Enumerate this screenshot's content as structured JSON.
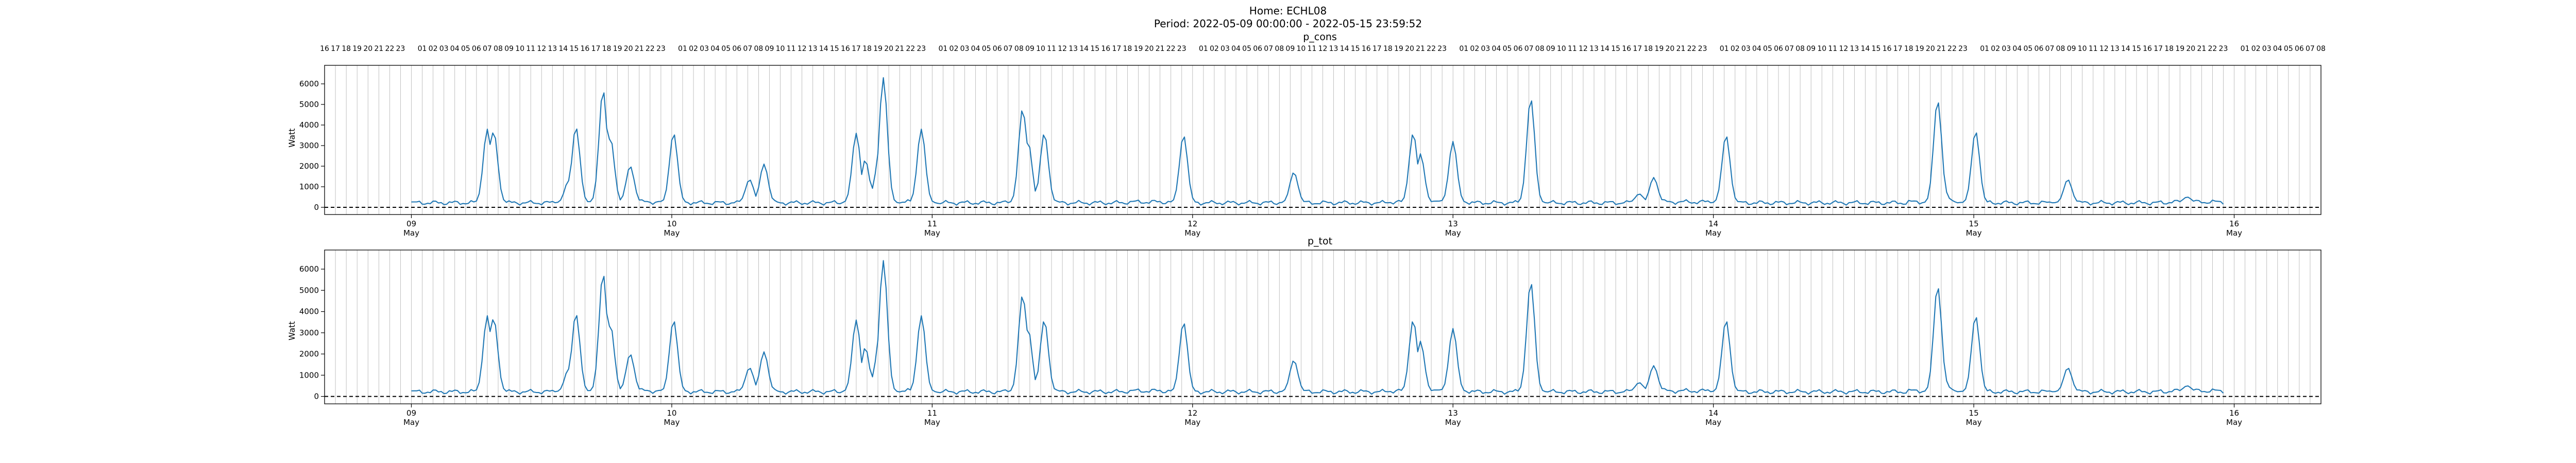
{
  "figure": {
    "title_line1": "Home: ECHL08",
    "title_line2": "Period: 2022-05-09 00:00:00 - 2022-05-15 23:59:52"
  },
  "chart_data": [
    {
      "type": "line",
      "title": "p_cons",
      "ylabel": "Watt",
      "xlabel": "",
      "x_range": [
        "2022-05-08 16:00",
        "2022-05-16 08:00"
      ],
      "ylim": [
        -350,
        6900
      ],
      "yticks": [
        0,
        1000,
        2000,
        3000,
        4000,
        5000,
        6000
      ],
      "grid": "vertical hourly lines",
      "baseline": 0,
      "series": [
        {
          "color": "#1f77b4",
          "data_start": "2022-05-09 00:00",
          "data_end": "2022-05-15 23:00",
          "baseline_watt": 220,
          "peaks": [
            {
              "t": "2022-05-09 07:00",
              "v": 3800
            },
            {
              "t": "2022-05-09 07:35",
              "v": 3700
            },
            {
              "t": "2022-05-09 14:30",
              "v": 1300
            },
            {
              "t": "2022-05-09 15:10",
              "v": 3900
            },
            {
              "t": "2022-05-09 17:40",
              "v": 5700
            },
            {
              "t": "2022-05-09 18:20",
              "v": 3400
            },
            {
              "t": "2022-05-09 20:10",
              "v": 2000
            },
            {
              "t": "2022-05-10 00:10",
              "v": 3600
            },
            {
              "t": "2022-05-10 07:10",
              "v": 1350
            },
            {
              "t": "2022-05-10 08:30",
              "v": 2100
            },
            {
              "t": "2022-05-10 17:00",
              "v": 3600
            },
            {
              "t": "2022-05-10 17:50",
              "v": 2300
            },
            {
              "t": "2022-05-10 19:00",
              "v": 2000
            },
            {
              "t": "2022-05-10 19:30",
              "v": 6300
            },
            {
              "t": "2022-05-10 23:00",
              "v": 3800
            },
            {
              "t": "2022-05-11 08:20",
              "v": 4800
            },
            {
              "t": "2022-05-11 08:50",
              "v": 3200
            },
            {
              "t": "2022-05-11 10:20",
              "v": 3600
            },
            {
              "t": "2022-05-11 23:10",
              "v": 3500
            },
            {
              "t": "2022-05-12 09:20",
              "v": 1700
            },
            {
              "t": "2022-05-12 20:20",
              "v": 3600
            },
            {
              "t": "2022-05-12 21:00",
              "v": 2600
            },
            {
              "t": "2022-05-13 00:00",
              "v": 3200
            },
            {
              "t": "2022-05-13 07:10",
              "v": 5300
            },
            {
              "t": "2022-05-13 17:10",
              "v": 650
            },
            {
              "t": "2022-05-13 18:30",
              "v": 1450
            },
            {
              "t": "2022-05-14 01:10",
              "v": 3500
            },
            {
              "t": "2022-05-14 20:40",
              "v": 5200
            },
            {
              "t": "2022-05-14 21:10",
              "v": 1000
            },
            {
              "t": "2022-05-15 00:10",
              "v": 3700
            },
            {
              "t": "2022-05-15 08:40",
              "v": 1350
            },
            {
              "t": "2022-05-15 19:40",
              "v": 500
            }
          ]
        }
      ]
    },
    {
      "type": "line",
      "title": "p_tot",
      "ylabel": "Watt",
      "xlabel": "",
      "x_range": [
        "2022-05-08 16:00",
        "2022-05-16 08:00"
      ],
      "ylim": [
        -350,
        6900
      ],
      "yticks": [
        0,
        1000,
        2000,
        3000,
        4000,
        5000,
        6000
      ],
      "grid": "vertical hourly lines",
      "baseline": 0,
      "series": [
        {
          "color": "#1f77b4",
          "data_start": "2022-05-09 00:00",
          "data_end": "2022-05-15 23:00",
          "baseline_watt": 220,
          "peaks": [
            {
              "t": "2022-05-09 07:00",
              "v": 3800
            },
            {
              "t": "2022-05-09 07:35",
              "v": 3700
            },
            {
              "t": "2022-05-09 14:30",
              "v": 1300
            },
            {
              "t": "2022-05-09 15:10",
              "v": 3900
            },
            {
              "t": "2022-05-09 17:40",
              "v": 5800
            },
            {
              "t": "2022-05-09 18:20",
              "v": 3400
            },
            {
              "t": "2022-05-09 20:10",
              "v": 2000
            },
            {
              "t": "2022-05-10 00:10",
              "v": 3600
            },
            {
              "t": "2022-05-10 07:10",
              "v": 1350
            },
            {
              "t": "2022-05-10 08:30",
              "v": 2100
            },
            {
              "t": "2022-05-10 17:00",
              "v": 3600
            },
            {
              "t": "2022-05-10 17:50",
              "v": 2300
            },
            {
              "t": "2022-05-10 19:00",
              "v": 2000
            },
            {
              "t": "2022-05-10 19:30",
              "v": 6400
            },
            {
              "t": "2022-05-10 23:00",
              "v": 3800
            },
            {
              "t": "2022-05-11 08:20",
              "v": 4800
            },
            {
              "t": "2022-05-11 08:50",
              "v": 3200
            },
            {
              "t": "2022-05-11 10:20",
              "v": 3600
            },
            {
              "t": "2022-05-11 23:10",
              "v": 3500
            },
            {
              "t": "2022-05-12 09:20",
              "v": 1700
            },
            {
              "t": "2022-05-12 20:20",
              "v": 3600
            },
            {
              "t": "2022-05-12 21:00",
              "v": 2600
            },
            {
              "t": "2022-05-13 00:00",
              "v": 3200
            },
            {
              "t": "2022-05-13 07:10",
              "v": 5400
            },
            {
              "t": "2022-05-13 17:10",
              "v": 650
            },
            {
              "t": "2022-05-13 18:30",
              "v": 1450
            },
            {
              "t": "2022-05-14 01:10",
              "v": 3600
            },
            {
              "t": "2022-05-14 20:40",
              "v": 5200
            },
            {
              "t": "2022-05-14 21:10",
              "v": 1000
            },
            {
              "t": "2022-05-15 00:10",
              "v": 3800
            },
            {
              "t": "2022-05-15 08:40",
              "v": 1350
            },
            {
              "t": "2022-05-15 19:40",
              "v": 500
            }
          ]
        }
      ]
    }
  ],
  "x_axis": {
    "day_ticks": [
      {
        "t": "2022-05-09 00:00",
        "day": "09",
        "month": "May"
      },
      {
        "t": "2022-05-10 00:00",
        "day": "10",
        "month": "May"
      },
      {
        "t": "2022-05-11 00:00",
        "day": "11",
        "month": "May"
      },
      {
        "t": "2022-05-12 00:00",
        "day": "12",
        "month": "May"
      },
      {
        "t": "2022-05-13 00:00",
        "day": "13",
        "month": "May"
      },
      {
        "t": "2022-05-14 00:00",
        "day": "14",
        "month": "May"
      },
      {
        "t": "2022-05-15 00:00",
        "day": "15",
        "month": "May"
      },
      {
        "t": "2022-05-16 00:00",
        "day": "16",
        "month": "May"
      }
    ],
    "hour_label_format": "HH (hours 01-23, midnight unlabeled)"
  }
}
